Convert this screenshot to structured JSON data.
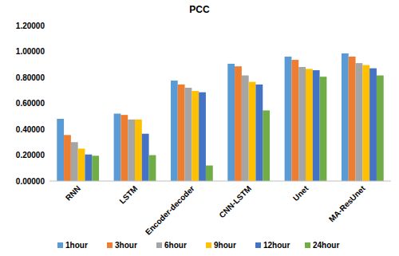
{
  "chart_data": {
    "type": "bar",
    "title": "PCC",
    "categories": [
      "RNN",
      "LSTM",
      "Encoder-decoder",
      "CNN-LSTM",
      "Unet",
      "MA-ResUnet"
    ],
    "series": [
      {
        "name": "1hour",
        "color": "#5B9BD5",
        "values": [
          0.48,
          0.52,
          0.775,
          0.905,
          0.96,
          0.985
        ]
      },
      {
        "name": "3hour",
        "color": "#ED7D31",
        "values": [
          0.355,
          0.51,
          0.745,
          0.885,
          0.935,
          0.96
        ]
      },
      {
        "name": "6hour",
        "color": "#A5A5A5",
        "values": [
          0.3,
          0.475,
          0.72,
          0.815,
          0.88,
          0.91
        ]
      },
      {
        "name": "9hour",
        "color": "#FFC000",
        "values": [
          0.25,
          0.475,
          0.695,
          0.765,
          0.865,
          0.895
        ]
      },
      {
        "name": "12hour",
        "color": "#4472C4",
        "values": [
          0.205,
          0.365,
          0.685,
          0.745,
          0.855,
          0.87
        ]
      },
      {
        "name": "24hour",
        "color": "#70AD47",
        "values": [
          0.195,
          0.2,
          0.12,
          0.545,
          0.805,
          0.815
        ]
      }
    ],
    "ylim": [
      0,
      1.2
    ],
    "yticks": [
      {
        "value": 0,
        "label": "0.00000"
      },
      {
        "value": 0.2,
        "label": "0.20000"
      },
      {
        "value": 0.4,
        "label": "0.40000"
      },
      {
        "value": 0.6,
        "label": "0.60000"
      },
      {
        "value": 0.8,
        "label": "0.80000"
      },
      {
        "value": 1.0,
        "label": "1.00000"
      },
      {
        "value": 1.2,
        "label": "1.20000"
      }
    ],
    "grid": false,
    "legend": "bottom"
  }
}
